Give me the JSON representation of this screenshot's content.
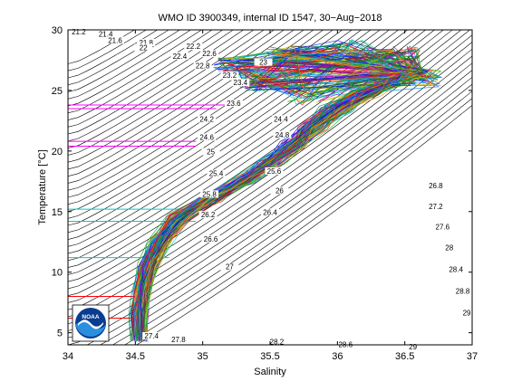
{
  "chart_data": {
    "type": "line",
    "title": "WMO ID 3900349, internal ID 1547, 30−Aug−2018",
    "xlabel": "Salinity",
    "ylabel": "Temperature [°C]",
    "xlim": [
      34,
      37
    ],
    "ylim": [
      4,
      30
    ],
    "xticks": [
      34,
      34.5,
      35,
      35.5,
      36,
      36.5,
      37
    ],
    "yticks": [
      5,
      10,
      15,
      20,
      25,
      30
    ],
    "xtick_labels": [
      "34",
      "34.5",
      "35",
      "35.5",
      "36",
      "36.5",
      "37"
    ],
    "ytick_labels": [
      "5",
      "10",
      "15",
      "20",
      "25",
      "30"
    ],
    "grid": false,
    "legend": "none",
    "logo": {
      "text": "NOAA",
      "placement": "bottom-left"
    },
    "density_contours": {
      "color": "#000000",
      "labels": [
        {
          "text": "21.2",
          "s": 34.08,
          "t": 29.7
        },
        {
          "text": "21.4",
          "s": 34.28,
          "t": 29.5
        },
        {
          "text": "21.6",
          "s": 34.35,
          "t": 29.0
        },
        {
          "text": "21.8",
          "s": 34.58,
          "t": 28.8
        },
        {
          "text": "22",
          "s": 34.56,
          "t": 28.4
        },
        {
          "text": "22.2",
          "s": 34.93,
          "t": 28.5
        },
        {
          "text": "22.4",
          "s": 34.83,
          "t": 27.7
        },
        {
          "text": "22.6",
          "s": 35.05,
          "t": 27.9
        },
        {
          "text": "22.8",
          "s": 35.0,
          "t": 26.9
        },
        {
          "text": "23",
          "s": 35.45,
          "t": 27.2
        },
        {
          "text": "23.2",
          "s": 35.2,
          "t": 26.1
        },
        {
          "text": "23.4",
          "s": 35.28,
          "t": 25.5
        },
        {
          "text": "23.6",
          "s": 35.23,
          "t": 23.8
        },
        {
          "text": "24.2",
          "s": 35.03,
          "t": 22.5
        },
        {
          "text": "24.6",
          "s": 35.03,
          "t": 21.0
        },
        {
          "text": "24.4",
          "s": 35.58,
          "t": 22.5
        },
        {
          "text": "24.8",
          "s": 35.59,
          "t": 21.2
        },
        {
          "text": "25",
          "s": 35.06,
          "t": 19.8
        },
        {
          "text": "25.4",
          "s": 35.1,
          "t": 18.0
        },
        {
          "text": "25.6",
          "s": 35.53,
          "t": 18.2
        },
        {
          "text": "25.8",
          "s": 35.05,
          "t": 16.3
        },
        {
          "text": "26",
          "s": 35.57,
          "t": 16.6
        },
        {
          "text": "26.2",
          "s": 35.04,
          "t": 14.6
        },
        {
          "text": "26.4",
          "s": 35.5,
          "t": 14.8
        },
        {
          "text": "26.6",
          "s": 35.06,
          "t": 12.6
        },
        {
          "text": "26.8",
          "s": 36.73,
          "t": 17.0
        },
        {
          "text": "27",
          "s": 35.2,
          "t": 10.3
        },
        {
          "text": "27.2",
          "s": 36.73,
          "t": 15.3
        },
        {
          "text": "27.4",
          "s": 34.62,
          "t": 4.6
        },
        {
          "text": "27.6",
          "s": 36.78,
          "t": 13.6
        },
        {
          "text": "27.8",
          "s": 34.82,
          "t": 4.3
        },
        {
          "text": "28",
          "s": 36.83,
          "t": 11.9
        },
        {
          "text": "28.2",
          "s": 35.55,
          "t": 4.1
        },
        {
          "text": "28.4",
          "s": 36.88,
          "t": 10.1
        },
        {
          "text": "28.6",
          "s": 36.06,
          "t": 3.9
        },
        {
          "text": "28.8",
          "s": 36.93,
          "t": 8.3
        },
        {
          "text": "29",
          "s": 36.56,
          "t": 3.7
        },
        {
          "text": "29",
          "s": 36.96,
          "t": 6.5
        }
      ]
    },
    "reference_lines": [
      {
        "color": "#ff00ff",
        "s_start": 34.0,
        "s_end": 35.2,
        "t": 23.8
      },
      {
        "color": "#ff00ff",
        "s_start": 34.0,
        "s_end": 35.1,
        "t": 23.5
      },
      {
        "color": "#ff00ff",
        "s_start": 34.0,
        "s_end": 34.95,
        "t": 20.8
      },
      {
        "color": "#ff00ff",
        "s_start": 34.0,
        "s_end": 34.95,
        "t": 20.4
      },
      {
        "color": "#00cccc",
        "s_start": 34.0,
        "s_end": 35.0,
        "t": 15.2
      },
      {
        "color": "#00cccc",
        "s_start": 34.0,
        "s_end": 34.95,
        "t": 14.2
      },
      {
        "color": "#00cccc",
        "s_start": 34.0,
        "s_end": 34.75,
        "t": 11.2
      },
      {
        "color": "#ff0000",
        "s_start": 34.0,
        "s_end": 34.55,
        "t": 8.0
      },
      {
        "color": "#ff0000",
        "s_start": 34.0,
        "s_end": 34.5,
        "t": 6.2
      }
    ],
    "profile_envelope": {
      "description": "hundreds of overlapping multi-coloured T-S profiles",
      "centerline": [
        {
          "s": 34.53,
          "t": 4.5
        },
        {
          "s": 34.53,
          "t": 6.5
        },
        {
          "s": 34.55,
          "t": 8.5
        },
        {
          "s": 34.6,
          "t": 10.5
        },
        {
          "s": 34.68,
          "t": 12.5
        },
        {
          "s": 34.82,
          "t": 14.5
        },
        {
          "s": 35.05,
          "t": 16.0
        },
        {
          "s": 35.3,
          "t": 17.5
        },
        {
          "s": 35.5,
          "t": 19.0
        },
        {
          "s": 35.68,
          "t": 20.5
        },
        {
          "s": 35.82,
          "t": 22.0
        },
        {
          "s": 36.0,
          "t": 23.5
        },
        {
          "s": 36.2,
          "t": 24.8
        },
        {
          "s": 36.42,
          "t": 25.8
        },
        {
          "s": 36.55,
          "t": 26.5
        }
      ],
      "top_fan": [
        {
          "s": 35.6,
          "t": 28.0
        },
        {
          "s": 35.2,
          "t": 27.0
        },
        {
          "s": 35.4,
          "t": 25.5
        },
        {
          "s": 35.75,
          "t": 24.5
        },
        {
          "s": 36.1,
          "t": 28.5
        },
        {
          "s": 36.5,
          "t": 28.0
        },
        {
          "s": 36.65,
          "t": 26.0
        }
      ]
    }
  }
}
